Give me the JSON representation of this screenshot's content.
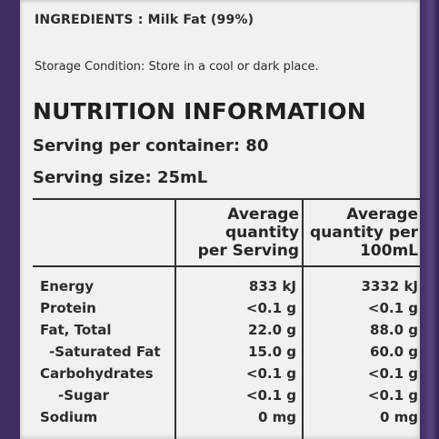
{
  "ingredients": "INGREDIENTS : Milk Fat (99%)",
  "storage": "Storage Condition: Store in a cool or dark place.",
  "nutrition": {
    "title": "NUTRITION INFORMATION",
    "serving_per_container": "Serving per container: 80",
    "serving_size": "Serving size: 25mL",
    "headers": {
      "col1_line1": "Average",
      "col1_line2": "quantity",
      "col1_line3": "per Serving",
      "col2_line1": "Average",
      "col2_line2": "quantity per",
      "col2_line3": "100mL"
    },
    "rows": [
      {
        "name": "Energy",
        "per_serving": "833 kJ",
        "per_100ml": "3332 kJ"
      },
      {
        "name": "Protein",
        "per_serving": "<0.1 g",
        "per_100ml": "<0.1 g"
      },
      {
        "name": "Fat, Total",
        "per_serving": "22.0 g",
        "per_100ml": "88.0 g"
      },
      {
        "name": "-Saturated Fat",
        "per_serving": "15.0 g",
        "per_100ml": "60.0 g"
      },
      {
        "name": "Carbohydrates",
        "per_serving": "<0.1 g",
        "per_100ml": "<0.1 g"
      },
      {
        "name": "-Sugar",
        "per_serving": "<0.1 g",
        "per_100ml": "<0.1 g"
      },
      {
        "name": "Sodium",
        "per_serving": "0 mg",
        "per_100ml": "0 mg"
      }
    ]
  },
  "colors": {
    "label_bg": "#f1f1ef",
    "container": "#3e2c63",
    "text": "#2b2b2b"
  }
}
